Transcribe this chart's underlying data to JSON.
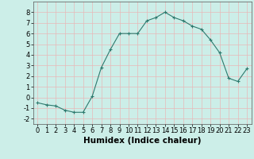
{
  "x": [
    0,
    1,
    2,
    3,
    4,
    5,
    6,
    7,
    8,
    9,
    10,
    11,
    12,
    13,
    14,
    15,
    16,
    17,
    18,
    19,
    20,
    21,
    22,
    23
  ],
  "y": [
    -0.5,
    -0.7,
    -0.8,
    -1.2,
    -1.4,
    -1.4,
    0.1,
    2.8,
    4.5,
    6.0,
    6.0,
    6.0,
    7.2,
    7.5,
    8.0,
    7.5,
    7.2,
    6.7,
    6.4,
    5.4,
    4.2,
    1.8,
    1.5,
    2.7
  ],
  "line_color": "#2d7a6e",
  "marker": "+",
  "marker_color": "#2d7a6e",
  "bg_color": "#cceee8",
  "grid_color": "#e8b8b8",
  "xlabel": "Humidex (Indice chaleur)",
  "xlabel_fontsize": 7.5,
  "ylim": [
    -2.5,
    9
  ],
  "xlim": [
    -0.5,
    23.5
  ],
  "yticks": [
    -2,
    -1,
    0,
    1,
    2,
    3,
    4,
    5,
    6,
    7,
    8
  ],
  "xticks": [
    0,
    1,
    2,
    3,
    4,
    5,
    6,
    7,
    8,
    9,
    10,
    11,
    12,
    13,
    14,
    15,
    16,
    17,
    18,
    19,
    20,
    21,
    22,
    23
  ],
  "tick_fontsize": 6
}
